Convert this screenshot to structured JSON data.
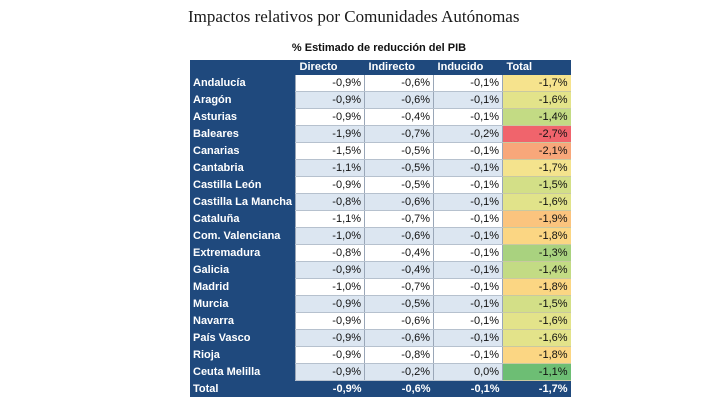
{
  "title": "Impactos relativos por Comunidades Autónomas",
  "subtitle": "% Estimado de reducción del PIB",
  "columns": [
    "Directo",
    "Indirecto",
    "Inducido",
    "Total"
  ],
  "rows": [
    {
      "region": "Andalucía",
      "directo": "-0,9%",
      "indirecto": "-0,6%",
      "inducido": "-0,1%",
      "total": "-1,7%",
      "total_color": "#f6e38d"
    },
    {
      "region": "Aragón",
      "directo": "-0,9%",
      "indirecto": "-0,6%",
      "inducido": "-0,1%",
      "total": "-1,6%",
      "total_color": "#e3e38a"
    },
    {
      "region": "Asturias",
      "directo": "-0,9%",
      "indirecto": "-0,4%",
      "inducido": "-0,1%",
      "total": "-1,4%",
      "total_color": "#c3db84"
    },
    {
      "region": "Baleares",
      "directo": "-1,9%",
      "indirecto": "-0,7%",
      "inducido": "-0,2%",
      "total": "-2,7%",
      "total_color": "#f0646c"
    },
    {
      "region": "Canarias",
      "directo": "-1,5%",
      "indirecto": "-0,5%",
      "inducido": "-0,1%",
      "total": "-2,1%",
      "total_color": "#f8a77a"
    },
    {
      "region": "Cantabria",
      "directo": "-1,1%",
      "indirecto": "-0,5%",
      "inducido": "-0,1%",
      "total": "-1,7%",
      "total_color": "#f4e38d"
    },
    {
      "region": "Castilla León",
      "directo": "-0,9%",
      "indirecto": "-0,5%",
      "inducido": "-0,1%",
      "total": "-1,5%",
      "total_color": "#d3df87"
    },
    {
      "region": "Castilla La Mancha",
      "directo": "-0,8%",
      "indirecto": "-0,6%",
      "inducido": "-0,1%",
      "total": "-1,6%",
      "total_color": "#e1e38a"
    },
    {
      "region": "Cataluña",
      "directo": "-1,1%",
      "indirecto": "-0,7%",
      "inducido": "-0,1%",
      "total": "-1,9%",
      "total_color": "#fbc47e"
    },
    {
      "region": "Com. Valenciana",
      "directo": "-1,0%",
      "indirecto": "-0,6%",
      "inducido": "-0,1%",
      "total": "-1,8%",
      "total_color": "#fbd683"
    },
    {
      "region": "Extremadura",
      "directo": "-0,8%",
      "indirecto": "-0,4%",
      "inducido": "-0,1%",
      "total": "-1,3%",
      "total_color": "#a9d27f"
    },
    {
      "region": "Galicia",
      "directo": "-0,9%",
      "indirecto": "-0,4%",
      "inducido": "-0,1%",
      "total": "-1,4%",
      "total_color": "#c3db84"
    },
    {
      "region": "Madrid",
      "directo": "-1,0%",
      "indirecto": "-0,7%",
      "inducido": "-0,1%",
      "total": "-1,8%",
      "total_color": "#fbd683"
    },
    {
      "region": "Murcia",
      "directo": "-0,9%",
      "indirecto": "-0,5%",
      "inducido": "-0,1%",
      "total": "-1,5%",
      "total_color": "#d3df87"
    },
    {
      "region": "Navarra",
      "directo": "-0,9%",
      "indirecto": "-0,6%",
      "inducido": "-0,1%",
      "total": "-1,6%",
      "total_color": "#e3e38a"
    },
    {
      "region": "País Vasco",
      "directo": "-0,9%",
      "indirecto": "-0,6%",
      "inducido": "-0,1%",
      "total": "-1,6%",
      "total_color": "#e3e38a"
    },
    {
      "region": "Rioja",
      "directo": "-0,9%",
      "indirecto": "-0,8%",
      "inducido": "-0,1%",
      "total": "-1,8%",
      "total_color": "#fbd683"
    },
    {
      "region": "Ceuta Melilla",
      "directo": "-0,9%",
      "indirecto": "-0,2%",
      "inducido": "0,0%",
      "total": "-1,1%",
      "total_color": "#6dbe74"
    }
  ],
  "total_row": {
    "label": "Total",
    "directo": "-0,9%",
    "indirecto": "-0,6%",
    "inducido": "-0,1%",
    "total": "-1,7%"
  },
  "colors": {
    "header_blue": "#1f497d",
    "row_alt_blue": "#dce6f1"
  }
}
